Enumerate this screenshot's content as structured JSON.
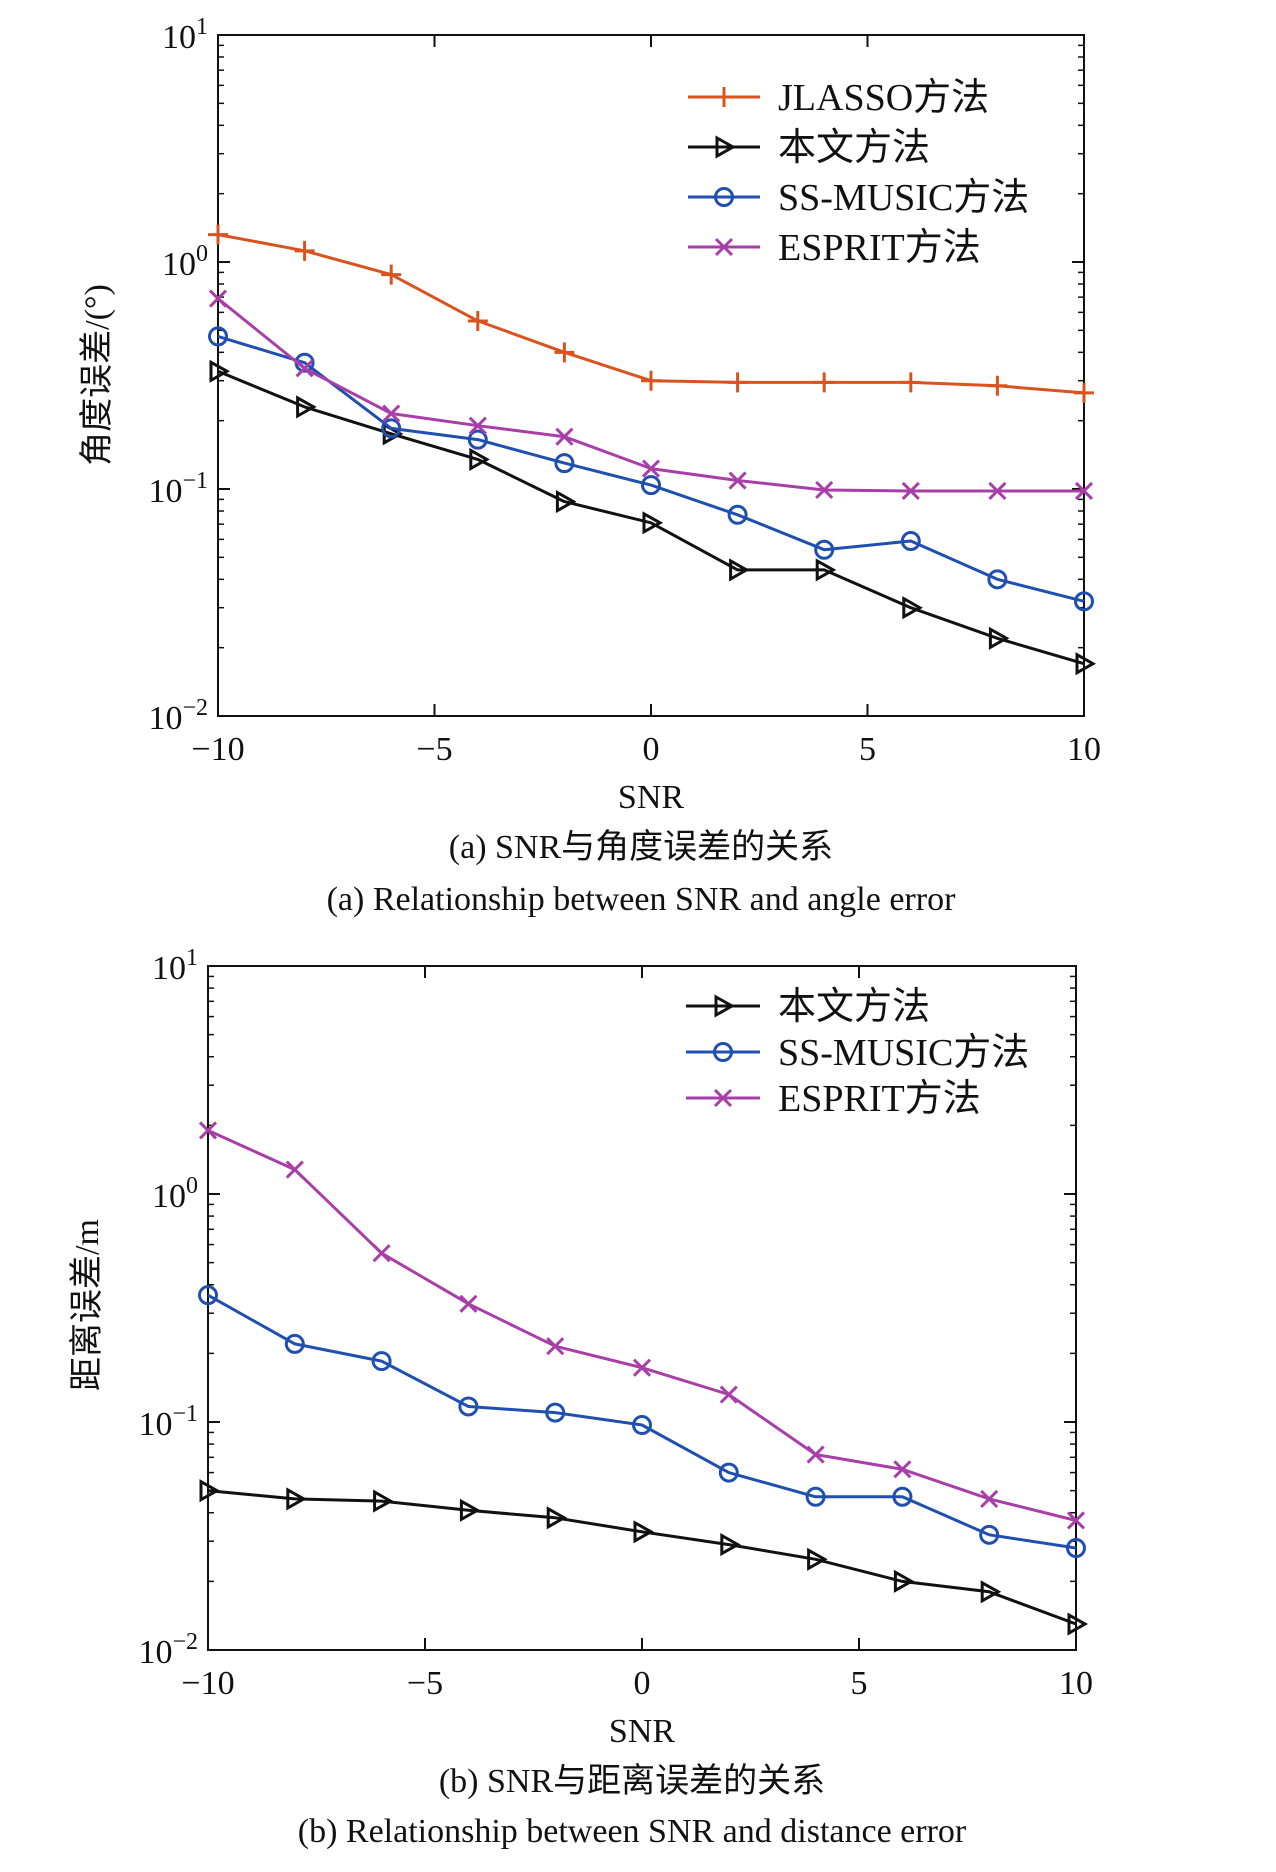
{
  "chart_data": [
    {
      "type": "line",
      "x": [
        -10,
        -8,
        -6,
        -4,
        -2,
        0,
        2,
        4,
        6,
        8,
        10
      ],
      "xlabel": "SNR",
      "ylabel": "角度误差/(°)",
      "xlim": [
        -10,
        10
      ],
      "ylim": [
        0.01,
        10
      ],
      "yscale": "log",
      "xticks": [
        "−10",
        "−5",
        "0",
        "5",
        "10"
      ],
      "yticks": [
        {
          "base": "10",
          "exp": "−2"
        },
        {
          "base": "10",
          "exp": "−1"
        },
        {
          "base": "10",
          "exp": "0"
        },
        {
          "base": "10",
          "exp": "1"
        }
      ],
      "grid": false,
      "legend_position": "top-right",
      "caption_cn": "(a) SNR与角度误差的关系",
      "caption_en": "(a) Relationship between SNR and angle error",
      "series": [
        {
          "name": "JLASSO方法",
          "color": "#d9531e",
          "marker": "plus",
          "values": [
            1.32,
            1.12,
            0.88,
            0.55,
            0.4,
            0.3,
            0.295,
            0.295,
            0.295,
            0.285,
            0.265
          ]
        },
        {
          "name": "本文方法",
          "color": "#111111",
          "marker": "triangle-right",
          "values": [
            0.33,
            0.23,
            0.175,
            0.135,
            0.088,
            0.071,
            0.044,
            0.044,
            0.03,
            0.022,
            0.017
          ]
        },
        {
          "name": "SS-MUSIC方法",
          "color": "#1f4fb0",
          "marker": "circle",
          "values": [
            0.47,
            0.36,
            0.185,
            0.165,
            0.13,
            0.104,
            0.077,
            0.054,
            0.059,
            0.04,
            0.032
          ]
        },
        {
          "name": "ESPRIT方法",
          "color": "#a83fa8",
          "marker": "x",
          "values": [
            0.69,
            0.34,
            0.215,
            0.19,
            0.17,
            0.123,
            0.109,
            0.099,
            0.098,
            0.098,
            0.098
          ]
        }
      ]
    },
    {
      "type": "line",
      "x": [
        -10,
        -8,
        -6,
        -4,
        -2,
        0,
        2,
        4,
        6,
        8,
        10
      ],
      "xlabel": "SNR",
      "ylabel": "距离误差/m",
      "xlim": [
        -10,
        10
      ],
      "ylim": [
        0.01,
        10
      ],
      "yscale": "log",
      "xticks": [
        "−10",
        "−5",
        "0",
        "5",
        "10"
      ],
      "yticks": [
        {
          "base": "10",
          "exp": "−2"
        },
        {
          "base": "10",
          "exp": "−1"
        },
        {
          "base": "10",
          "exp": "0"
        },
        {
          "base": "10",
          "exp": "1"
        }
      ],
      "grid": false,
      "legend_position": "top-right",
      "caption_cn": "(b) SNR与距离误差的关系",
      "caption_en": "(b) Relationship between SNR and distance error",
      "series": [
        {
          "name": "本文方法",
          "color": "#111111",
          "marker": "triangle-right",
          "values": [
            0.05,
            0.046,
            0.045,
            0.041,
            0.038,
            0.033,
            0.029,
            0.025,
            0.02,
            0.018,
            0.013
          ]
        },
        {
          "name": "SS-MUSIC方法",
          "color": "#1f4fb0",
          "marker": "circle",
          "values": [
            0.36,
            0.22,
            0.185,
            0.117,
            0.11,
            0.097,
            0.06,
            0.047,
            0.047,
            0.032,
            0.028
          ]
        },
        {
          "name": "ESPRIT方法",
          "color": "#a83fa8",
          "marker": "x",
          "values": [
            1.9,
            1.28,
            0.55,
            0.33,
            0.215,
            0.173,
            0.132,
            0.072,
            0.062,
            0.046,
            0.037
          ]
        }
      ]
    }
  ]
}
